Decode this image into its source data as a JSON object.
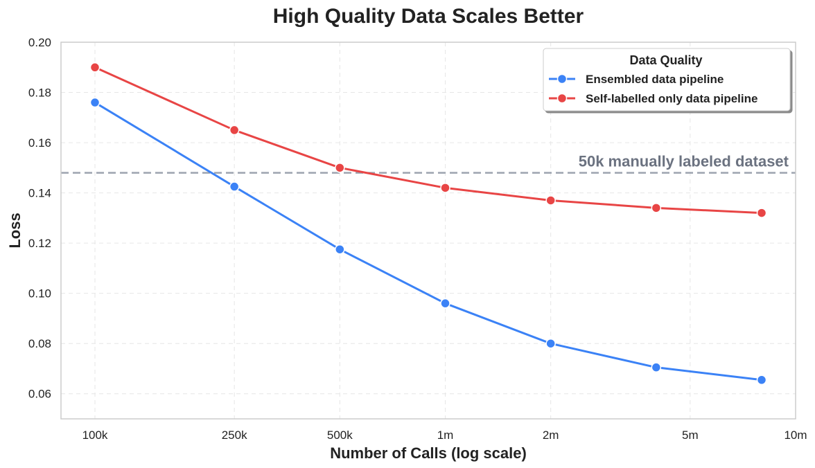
{
  "chart_data": {
    "type": "line",
    "title": "High Quality Data Scales Better",
    "xlabel": "Number of Calls (log scale)",
    "ylabel": "Loss",
    "xscale": "log",
    "xlim": [
      100000,
      10000000
    ],
    "ylim": [
      0.05,
      0.2
    ],
    "grid": true,
    "x_ticks": [
      {
        "value": 100000,
        "label": "100k"
      },
      {
        "value": 250000,
        "label": "250k"
      },
      {
        "value": 500000,
        "label": "500k"
      },
      {
        "value": 1000000,
        "label": "1m"
      },
      {
        "value": 2000000,
        "label": "2m"
      },
      {
        "value": 5000000,
        "label": "5m"
      },
      {
        "value": 10000000,
        "label": "10m"
      }
    ],
    "y_ticks": [
      {
        "value": 0.06,
        "label": "0.06"
      },
      {
        "value": 0.08,
        "label": "0.08"
      },
      {
        "value": 0.1,
        "label": "0.10"
      },
      {
        "value": 0.12,
        "label": "0.12"
      },
      {
        "value": 0.14,
        "label": "0.14"
      },
      {
        "value": 0.16,
        "label": "0.16"
      },
      {
        "value": 0.18,
        "label": "0.18"
      },
      {
        "value": 0.2,
        "label": "0.20"
      }
    ],
    "series": [
      {
        "name": "Ensembled data pipeline",
        "color": "#3b82f6",
        "x": [
          100000,
          250000,
          500000,
          1000000,
          2000000,
          4000000,
          8000000
        ],
        "values": [
          0.176,
          0.1425,
          0.1175,
          0.096,
          0.08,
          0.0705,
          0.0655
        ]
      },
      {
        "name": "Self-labelled only data pipeline",
        "color": "#e84545",
        "x": [
          100000,
          250000,
          500000,
          1000000,
          2000000,
          4000000,
          8000000
        ],
        "values": [
          0.19,
          0.165,
          0.15,
          0.142,
          0.137,
          0.134,
          0.132
        ]
      }
    ],
    "reference_line": {
      "label": "50k manually labeled dataset",
      "value": 0.148,
      "color": "#9ca3af",
      "label_color": "#6b7280"
    },
    "legend": {
      "title": "Data Quality",
      "position": "top-right"
    }
  }
}
